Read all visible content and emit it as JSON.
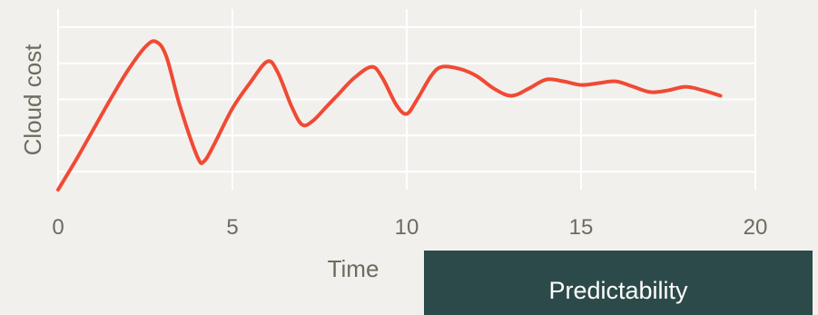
{
  "chart_data": {
    "type": "line",
    "xlabel": "Time",
    "ylabel": "Cloud cost",
    "xlim": [
      0,
      20
    ],
    "ylim": [
      0,
      10
    ],
    "xticks": [
      0,
      5,
      10,
      15,
      20
    ],
    "grid": true,
    "line_color": "#f04a35",
    "background_color": "#f2f0ec",
    "series": [
      {
        "x": [
          0,
          0.5,
          1,
          1.5,
          2,
          2.5,
          2.8,
          3.1,
          3.5,
          4,
          4.2,
          4.5,
          5,
          5.5,
          6,
          6.3,
          6.7,
          7,
          7.3,
          7.7,
          8,
          8.5,
          9,
          9.3,
          9.7,
          10,
          10.3,
          10.7,
          11,
          11.5,
          12,
          12.5,
          13,
          13.5,
          14,
          14.5,
          15,
          15.5,
          16,
          16.5,
          17,
          17.5,
          18,
          18.5,
          19
        ],
        "y": [
          0,
          1.6,
          3.3,
          5.0,
          6.6,
          7.9,
          8.2,
          7.4,
          4.6,
          1.8,
          1.6,
          2.6,
          4.5,
          5.9,
          7.1,
          6.5,
          4.6,
          3.6,
          3.8,
          4.6,
          5.2,
          6.2,
          6.8,
          6.2,
          4.7,
          4.2,
          5.0,
          6.3,
          6.8,
          6.7,
          6.3,
          5.6,
          5.2,
          5.6,
          6.1,
          6.0,
          5.8,
          5.9,
          6.0,
          5.7,
          5.4,
          5.5,
          5.7,
          5.5,
          5.2
        ]
      }
    ]
  },
  "badge": {
    "label": "Predictability",
    "color": "#2c4a49"
  }
}
